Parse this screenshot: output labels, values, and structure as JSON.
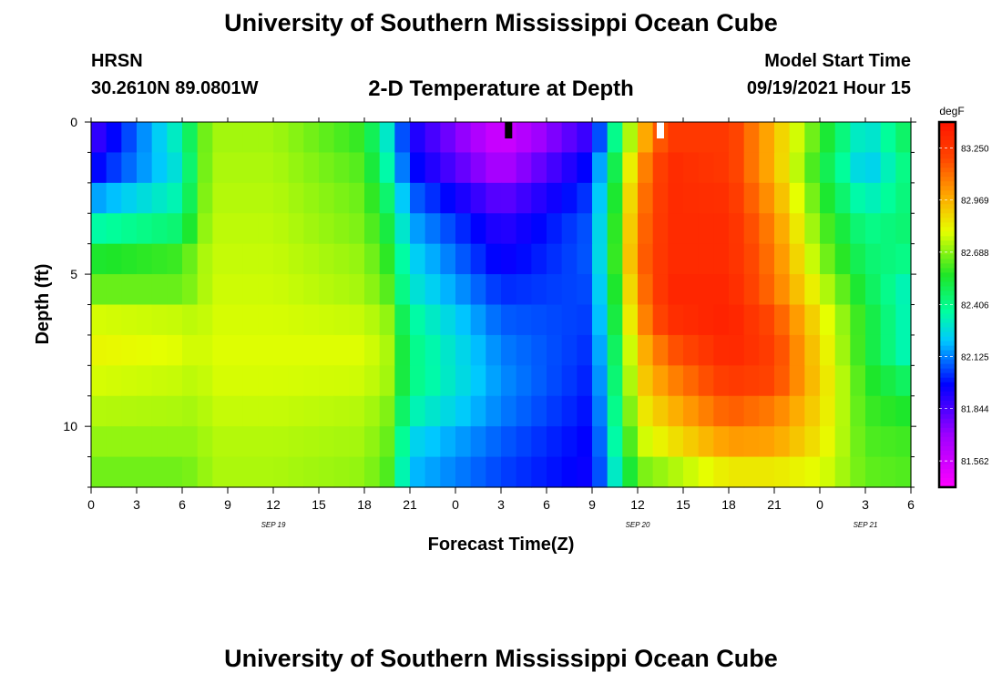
{
  "header": {
    "title": "University of Southern Mississippi Ocean Cube",
    "station": "HRSN",
    "coords": "30.2610N  89.0801W",
    "subtitle": "2-D Temperature at Depth",
    "model_start_label": "Model Start Time",
    "model_start_value": "09/19/2021 Hour 15"
  },
  "footer": {
    "title": "University of Southern Mississippi Ocean Cube"
  },
  "chart_data": {
    "type": "heatmap",
    "xlabel": "Forecast Time(Z)",
    "ylabel": "Depth (ft)",
    "x_ticks": [
      "0",
      "3",
      "6",
      "9",
      "12",
      "15",
      "18",
      "21",
      "0",
      "3",
      "6",
      "9",
      "12",
      "15",
      "18",
      "21",
      "0",
      "3",
      "6"
    ],
    "day_labels": [
      {
        "label": "SEP 19",
        "tick_index": 4
      },
      {
        "label": "SEP 20",
        "tick_index": 12
      },
      {
        "label": "SEP 21",
        "tick_index": 17
      }
    ],
    "y_ticks": [
      "0",
      "5",
      "10"
    ],
    "depth_range_ft": [
      0,
      12
    ],
    "hours_range": [
      0,
      54
    ],
    "colorbar": {
      "unit": "degF",
      "labels": [
        "83.250",
        "82.969",
        "82.688",
        "82.406",
        "82.125",
        "81.844",
        "81.562"
      ],
      "min": 81.42,
      "max": 83.39
    },
    "markers": [
      {
        "color": "#000000",
        "hour": 27.5
      },
      {
        "color": "#ffffff",
        "hour": 37.5
      }
    ],
    "depth_levels_ft": [
      0.5,
      1.5,
      2.5,
      3.5,
      4.5,
      5.5,
      6.5,
      7.5,
      8.5,
      9.5,
      10.5,
      11.5
    ],
    "profile_hours": [
      0,
      6,
      7,
      8,
      12,
      18,
      19.5,
      21,
      27,
      33,
      36,
      38,
      42,
      45,
      48,
      51,
      54
    ],
    "values_degF": [
      [
        81.85,
        82.35,
        82.6,
        82.72,
        82.72,
        82.58,
        82.3,
        81.95,
        81.55,
        81.9,
        82.9,
        83.25,
        83.25,
        82.95,
        82.6,
        82.25,
        82.5
      ],
      [
        81.95,
        82.3,
        82.6,
        82.73,
        82.73,
        82.62,
        82.35,
        82.0,
        81.65,
        82.0,
        83.0,
        83.3,
        83.25,
        82.95,
        82.55,
        82.2,
        82.45
      ],
      [
        82.15,
        82.35,
        82.62,
        82.74,
        82.74,
        82.65,
        82.45,
        82.1,
        81.8,
        82.05,
        83.05,
        83.3,
        83.28,
        83.0,
        82.6,
        82.3,
        82.45
      ],
      [
        82.35,
        82.45,
        82.65,
        82.75,
        82.75,
        82.67,
        82.52,
        82.18,
        81.9,
        82.08,
        83.08,
        83.3,
        83.3,
        83.05,
        82.65,
        82.4,
        82.45
      ],
      [
        82.55,
        82.6,
        82.7,
        82.76,
        82.76,
        82.7,
        82.58,
        82.25,
        81.95,
        82.08,
        83.1,
        83.3,
        83.3,
        83.08,
        82.7,
        82.45,
        82.4
      ],
      [
        82.65,
        82.65,
        82.7,
        82.77,
        82.77,
        82.72,
        82.63,
        82.3,
        82.02,
        82.06,
        83.05,
        83.32,
        83.32,
        83.1,
        82.78,
        82.5,
        82.3
      ],
      [
        82.78,
        82.76,
        82.74,
        82.78,
        82.78,
        82.76,
        82.7,
        82.38,
        82.08,
        82.04,
        83.0,
        83.28,
        83.34,
        83.18,
        82.85,
        82.55,
        82.3
      ],
      [
        82.82,
        82.79,
        82.76,
        82.79,
        82.79,
        82.79,
        82.73,
        82.42,
        82.12,
        82.02,
        82.92,
        83.15,
        83.32,
        83.22,
        82.88,
        82.55,
        82.3
      ],
      [
        82.78,
        82.76,
        82.74,
        82.78,
        82.78,
        82.77,
        82.72,
        82.42,
        82.14,
        82.0,
        82.88,
        83.05,
        83.25,
        83.2,
        82.9,
        82.58,
        82.45
      ],
      [
        82.74,
        82.73,
        82.72,
        82.76,
        82.76,
        82.74,
        82.68,
        82.35,
        82.12,
        81.98,
        82.82,
        82.95,
        83.15,
        83.08,
        82.88,
        82.6,
        82.55
      ],
      [
        82.7,
        82.7,
        82.7,
        82.74,
        82.74,
        82.72,
        82.65,
        82.25,
        82.08,
        81.96,
        82.75,
        82.85,
        83.02,
        83.0,
        82.85,
        82.62,
        82.6
      ],
      [
        82.66,
        82.66,
        82.68,
        82.73,
        82.73,
        82.7,
        82.62,
        82.2,
        82.05,
        81.95,
        82.66,
        82.72,
        82.85,
        82.85,
        82.8,
        82.64,
        82.62
      ]
    ]
  }
}
